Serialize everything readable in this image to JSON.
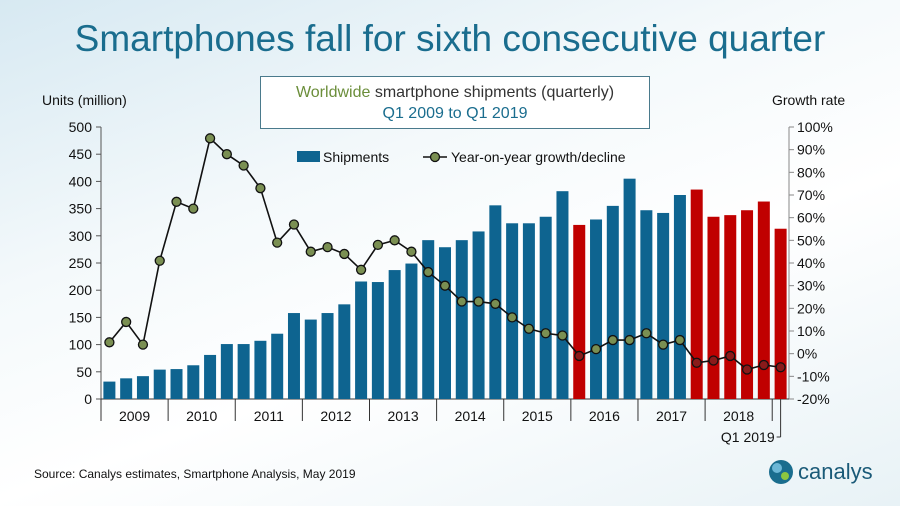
{
  "title": "Smartphones fall for sixth consecutive quarter",
  "subtitle": {
    "highlight": "Worldwide",
    "rest": " smartphone shipments (quarterly)",
    "range": "Q1 2009 to Q1 2019"
  },
  "source": "Source:  Canalys estimates, Smartphone Analysis, May 2019",
  "logo": "canalys",
  "chart_data": {
    "type": "bar+line",
    "ylabel_left": "Units (million)",
    "ylabel_right": "Growth rate",
    "ylim_left": [
      0,
      500
    ],
    "ylim_right": [
      -20,
      100
    ],
    "left_ticks": [
      "0",
      "50",
      "100",
      "150",
      "200",
      "250",
      "300",
      "350",
      "400",
      "450",
      "500"
    ],
    "right_ticks": [
      "-20%",
      "-10%",
      "0%",
      "10%",
      "20%",
      "30%",
      "40%",
      "50%",
      "60%",
      "70%",
      "80%",
      "90%",
      "100%"
    ],
    "year_labels": [
      "2009",
      "2010",
      "2011",
      "2012",
      "2013",
      "2014",
      "2015",
      "2016",
      "2017",
      "2018"
    ],
    "last_label": "Q1 2019",
    "legend": {
      "bars": "Shipments",
      "line": "Year-on-year growth/decline",
      "position": "top"
    },
    "colors": {
      "growth_bar": "#0e6490",
      "decline_bar": "#c00000",
      "point": "#7a8f52",
      "decline_point": "#8a1a1a"
    },
    "series": [
      {
        "name": "Shipments",
        "type": "bar",
        "values": [
          32,
          38,
          42,
          54,
          55,
          62,
          81,
          101,
          101,
          107,
          120,
          158,
          146,
          158,
          174,
          216,
          215,
          237,
          249,
          292,
          279,
          292,
          308,
          356,
          323,
          323,
          335,
          382,
          320,
          330,
          355,
          405,
          347,
          342,
          375,
          385,
          335,
          338,
          347,
          363,
          313
        ]
      },
      {
        "name": "Year-on-year growth/decline",
        "type": "line",
        "values": [
          5,
          14,
          4,
          41,
          67,
          64,
          95,
          88,
          83,
          73,
          49,
          57,
          45,
          47,
          44,
          37,
          48,
          50,
          45,
          36,
          30,
          23,
          23,
          22,
          16,
          11,
          9,
          8,
          -1,
          2,
          6,
          6,
          9,
          4,
          6,
          -4,
          -3,
          -1,
          -7,
          -5,
          -6
        ]
      }
    ]
  }
}
